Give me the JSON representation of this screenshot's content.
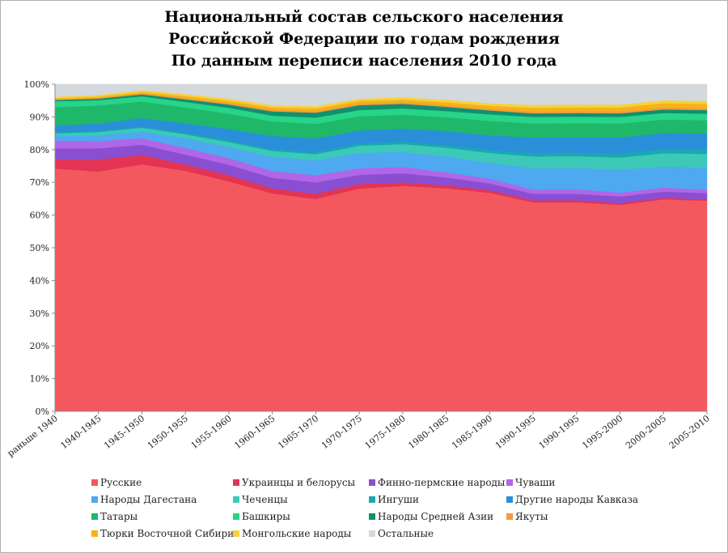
{
  "chart_data": {
    "type": "area",
    "stacked": true,
    "normalized": true,
    "title": [
      "Национальный состав сельского населения",
      "Российской Федерации по годам рождения",
      "По данным переписи населения 2010 года"
    ],
    "categories": [
      "раньше 1940",
      "1940-1945",
      "1945-1950",
      "1950-1955",
      "1955-1960",
      "1960-1965",
      "1965-1970",
      "1970-1975",
      "1975-1980",
      "1980-1985",
      "1985-1990",
      "1990-1995",
      "1990-1995",
      "1995-2000",
      "2000-2005",
      "2005-2010"
    ],
    "y_ticks": [
      "0%",
      "10%",
      "20%",
      "30%",
      "40%",
      "50%",
      "60%",
      "70%",
      "80%",
      "90%",
      "100%"
    ],
    "ylim": [
      0,
      100
    ],
    "legend_position": "bottom",
    "series": [
      {
        "name": "Русские",
        "color": "#f4585f",
        "values": [
          74.2,
          73.3,
          75.5,
          73.5,
          70.3,
          66.6,
          64.9,
          68.1,
          68.9,
          68.2,
          66.8,
          63.9,
          63.9,
          63.1,
          64.8,
          64.4
        ]
      },
      {
        "name": "Украинцы и белорусы",
        "color": "#e33454",
        "values": [
          2.8,
          3.7,
          2.9,
          2.0,
          1.9,
          1.6,
          1.6,
          1.4,
          1.1,
          0.9,
          0.8,
          0.6,
          0.6,
          0.5,
          0.5,
          0.4
        ]
      },
      {
        "name": "Финно-пермские народы",
        "color": "#8a4fd0",
        "values": [
          3.4,
          3.4,
          3.1,
          3.0,
          3.2,
          3.2,
          3.5,
          2.8,
          2.8,
          2.4,
          2.1,
          2.0,
          2.0,
          2.1,
          1.9,
          1.9
        ]
      },
      {
        "name": "Чуваши",
        "color": "#b066e8",
        "values": [
          2.3,
          2.2,
          2.0,
          2.0,
          2.0,
          2.1,
          2.2,
          2.0,
          1.9,
          1.6,
          1.4,
          1.3,
          1.4,
          1.2,
          1.2,
          1.1
        ]
      },
      {
        "name": "Народы Дагестана",
        "color": "#4ea9f0",
        "values": [
          1.5,
          1.8,
          2.1,
          2.9,
          3.4,
          4.3,
          4.5,
          4.7,
          4.6,
          4.8,
          4.9,
          6.5,
          6.5,
          7.0,
          6.4,
          6.7
        ]
      },
      {
        "name": "Чеченцы",
        "color": "#3cc9b8",
        "values": [
          0.8,
          1.0,
          1.1,
          1.3,
          1.5,
          1.8,
          1.9,
          2.2,
          2.4,
          2.7,
          3.0,
          3.6,
          3.6,
          3.7,
          4.1,
          4.2
        ]
      },
      {
        "name": "Ингуши",
        "color": "#18a9b0",
        "values": [
          0.3,
          0.3,
          0.4,
          0.4,
          0.5,
          0.6,
          0.6,
          0.7,
          0.7,
          0.8,
          0.9,
          1.1,
          1.1,
          1.2,
          1.3,
          1.3
        ]
      },
      {
        "name": "Другие народы Кавказа",
        "color": "#2a8fd8",
        "values": [
          2.1,
          2.3,
          2.6,
          3.0,
          3.5,
          4.0,
          4.2,
          4.0,
          4.0,
          4.3,
          4.5,
          4.7,
          4.7,
          4.9,
          4.9,
          4.9
        ]
      },
      {
        "name": "Татары",
        "color": "#1fb86a",
        "values": [
          5.6,
          5.5,
          5.0,
          4.8,
          4.7,
          4.4,
          4.5,
          4.3,
          4.3,
          4.2,
          4.4,
          4.3,
          4.3,
          4.3,
          4.1,
          4.1
        ]
      },
      {
        "name": "Башкиры",
        "color": "#27d488",
        "values": [
          1.8,
          1.6,
          1.6,
          1.7,
          1.8,
          1.8,
          1.9,
          1.9,
          1.9,
          1.9,
          2.0,
          2.0,
          2.0,
          2.0,
          2.0,
          2.0
        ]
      },
      {
        "name": "Народы Средней Азии",
        "color": "#109070",
        "values": [
          0.4,
          0.5,
          0.6,
          0.8,
          1.0,
          1.3,
          1.5,
          1.5,
          1.4,
          1.3,
          1.2,
          1.1,
          1.1,
          1.1,
          1.1,
          1.1
        ]
      },
      {
        "name": "Якуты",
        "color": "#f59a3a",
        "values": [
          0.2,
          0.2,
          0.3,
          0.4,
          0.4,
          0.5,
          0.5,
          0.5,
          0.5,
          0.5,
          0.5,
          0.6,
          0.6,
          0.6,
          0.6,
          0.6
        ]
      },
      {
        "name": "Тюрки Восточной  Сибири",
        "color": "#f5b21c",
        "values": [
          0.3,
          0.4,
          0.4,
          0.6,
          0.7,
          0.7,
          0.8,
          0.8,
          0.8,
          0.9,
          0.9,
          1.1,
          1.1,
          1.2,
          1.3,
          1.3
        ]
      },
      {
        "name": "Монгольские народы",
        "color": "#f7d23a",
        "values": [
          0.5,
          0.5,
          0.6,
          0.6,
          0.7,
          0.7,
          0.7,
          0.7,
          0.7,
          0.8,
          0.8,
          0.9,
          0.9,
          0.9,
          0.9,
          0.9
        ]
      },
      {
        "name": "Остальные",
        "color": "#d4d9de",
        "values": [
          3.8,
          3.3,
          1.8,
          3.0,
          4.4,
          6.4,
          6.7,
          4.4,
          4.0,
          4.7,
          5.8,
          6.3,
          6.2,
          6.2,
          4.9,
          5.1
        ]
      }
    ]
  }
}
